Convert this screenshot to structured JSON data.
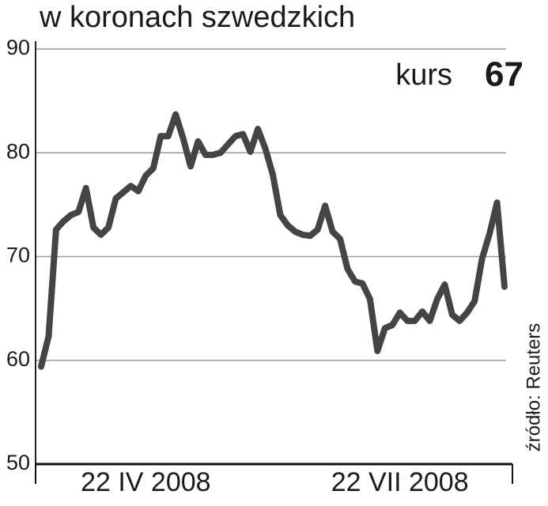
{
  "chart_data": {
    "type": "line",
    "title": "w koronach szwedzkich",
    "annotation": "kurs",
    "annotation_value": "67",
    "source": "źródło: Reuters",
    "categories": [
      null,
      null,
      null,
      null,
      null,
      null,
      null,
      null,
      null,
      null,
      null,
      null,
      null,
      null,
      "22 IV 2008",
      null,
      null,
      null,
      null,
      null,
      null,
      null,
      null,
      null,
      null,
      null,
      null,
      null,
      null,
      null,
      null,
      null,
      null,
      null,
      null,
      null,
      null,
      null,
      null,
      null,
      null,
      null,
      null,
      null,
      null,
      null,
      null,
      null,
      "22 VII 2008",
      null,
      null,
      null,
      null,
      null,
      null,
      null,
      null,
      null,
      null,
      null,
      null,
      null,
      null
    ],
    "series": [
      {
        "name": "kurs",
        "color": "#444444",
        "values": [
          59.4,
          62.3,
          72.6,
          73.4,
          74.0,
          74.3,
          76.6,
          72.8,
          72.1,
          72.8,
          75.6,
          76.2,
          76.8,
          76.3,
          77.8,
          78.5,
          81.6,
          81.6,
          83.7,
          81.4,
          78.7,
          81.1,
          79.8,
          79.8,
          80.0,
          80.8,
          81.6,
          81.8,
          80.1,
          82.3,
          80.4,
          77.9,
          74.0,
          73.0,
          72.4,
          72.1,
          72.0,
          72.6,
          74.9,
          72.4,
          71.7,
          68.8,
          67.6,
          67.4,
          65.9,
          60.9,
          63.1,
          63.4,
          64.6,
          63.8,
          63.8,
          64.7,
          63.8,
          65.9,
          67.3,
          64.4,
          63.8,
          64.6,
          65.7,
          69.8,
          72.2,
          75.2,
          67.1
        ]
      }
    ],
    "ylim": [
      50,
      90
    ],
    "yticks": [
      50,
      60,
      70,
      80,
      90
    ],
    "grid": true
  }
}
